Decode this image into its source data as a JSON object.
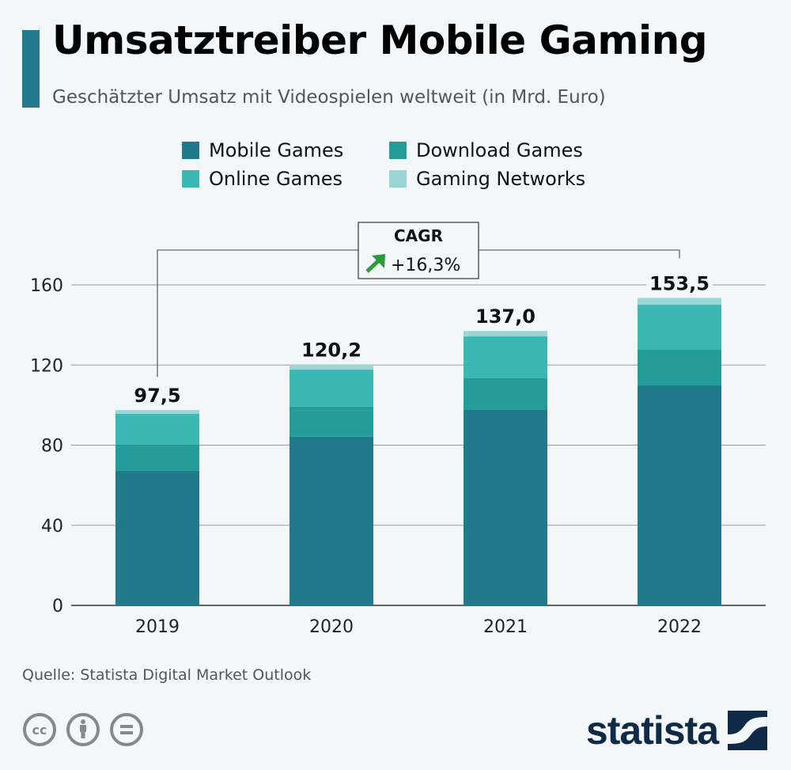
{
  "header": {
    "title": "Umsatztreiber Mobile Gaming",
    "subtitle": "Geschätzter Umsatz mit Videospielen weltweit (in Mrd. Euro)"
  },
  "chart_data": {
    "type": "bar",
    "stacked": true,
    "title": "Umsatztreiber Mobile Gaming",
    "subtitle": "Geschätzter Umsatz mit Videospielen weltweit (in Mrd. Euro)",
    "xlabel": "",
    "ylabel": "",
    "categories": [
      "2019",
      "2020",
      "2021",
      "2022"
    ],
    "series": [
      {
        "name": "Mobile Games",
        "color": "#217a8c",
        "values": [
          67.2,
          84.2,
          97.6,
          109.8
        ]
      },
      {
        "name": "Download Games",
        "color": "#239c9a",
        "values": [
          13.0,
          15.0,
          15.8,
          17.8
        ]
      },
      {
        "name": "Online Games",
        "color": "#3bb8b4",
        "values": [
          15.4,
          18.5,
          20.9,
          22.5
        ]
      },
      {
        "name": "Gaming Networks",
        "color": "#9ad6d5",
        "values": [
          1.9,
          2.5,
          2.7,
          3.4
        ]
      }
    ],
    "totals": [
      "97,5",
      "120,2",
      "137,0",
      "153,5"
    ],
    "total_values": [
      97.5,
      120.2,
      137.0,
      153.5
    ],
    "ylim": [
      0,
      160
    ],
    "yticks": [
      0,
      40,
      80,
      120,
      160
    ],
    "grid": true,
    "legend_position": "top-center",
    "annotation": {
      "label": "CAGR",
      "value": "+16,3%",
      "from": "2019",
      "to": "2022",
      "arrow_color": "#2a9a3a"
    }
  },
  "footer": {
    "source": "Quelle: Statista Digital Market Outlook",
    "license_icons": [
      "cc-icon",
      "attribution-icon",
      "no-derivatives-icon"
    ],
    "logo_text": "statista"
  },
  "colors": {
    "accent": "#237a8c",
    "logo": "#0f2a47",
    "background": "#f4f7fa"
  }
}
